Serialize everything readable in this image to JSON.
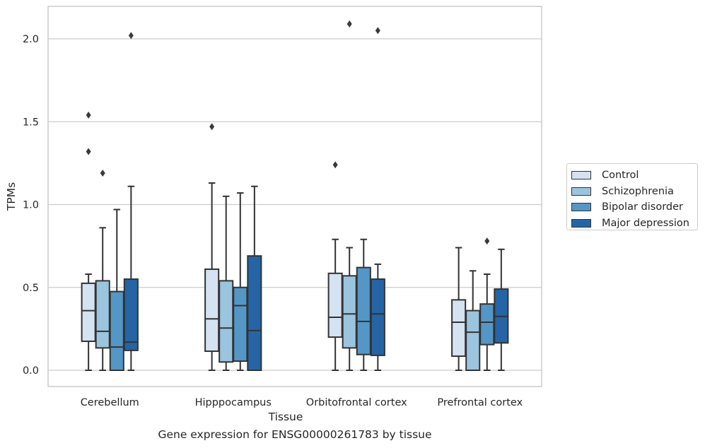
{
  "caption": "Gene expression for ENSG00000261783 by tissue",
  "chart_data": {
    "type": "box",
    "xlabel": "Tissue",
    "ylabel": "TPMs",
    "ylim": [
      -0.1,
      2.2
    ],
    "yticks": [
      "0.0",
      "0.5",
      "1.0",
      "1.5",
      "2.0"
    ],
    "ytick_values": [
      0.0,
      0.5,
      1.0,
      1.5,
      2.0
    ],
    "grid": "horizontal",
    "legend_position": "right, outside plot",
    "categories": [
      "Cerebellum",
      "Hipppocampus",
      "Orbitofrontal cortex",
      "Prefrontal cortex"
    ],
    "series": [
      {
        "name": "Control",
        "color": "#d4e2f1",
        "boxes": [
          {
            "whisker_low": 0.0,
            "q1": 0.175,
            "median": 0.36,
            "q3": 0.525,
            "whisker_high": 0.58,
            "outliers": [
              1.32,
              1.54
            ]
          },
          {
            "whisker_low": 0.0,
            "q1": 0.115,
            "median": 0.31,
            "q3": 0.61,
            "whisker_high": 1.13,
            "outliers": [
              1.47
            ]
          },
          {
            "whisker_low": 0.0,
            "q1": 0.2,
            "median": 0.32,
            "q3": 0.585,
            "whisker_high": 0.79,
            "outliers": [
              1.24
            ]
          },
          {
            "whisker_low": 0.0,
            "q1": 0.085,
            "median": 0.29,
            "q3": 0.425,
            "whisker_high": 0.74,
            "outliers": []
          }
        ]
      },
      {
        "name": "Schizophrenia",
        "color": "#9bc5de",
        "boxes": [
          {
            "whisker_low": 0.0,
            "q1": 0.135,
            "median": 0.235,
            "q3": 0.54,
            "whisker_high": 0.86,
            "outliers": [
              1.19
            ]
          },
          {
            "whisker_low": 0.0,
            "q1": 0.05,
            "median": 0.255,
            "q3": 0.54,
            "whisker_high": 1.05,
            "outliers": []
          },
          {
            "whisker_low": 0.0,
            "q1": 0.135,
            "median": 0.34,
            "q3": 0.57,
            "whisker_high": 0.74,
            "outliers": [
              2.09
            ]
          },
          {
            "whisker_low": 0.0,
            "q1": 0.0,
            "median": 0.23,
            "q3": 0.36,
            "whisker_high": 0.6,
            "outliers": []
          }
        ]
      },
      {
        "name": "Bipolar disorder",
        "color": "#5497c7",
        "boxes": [
          {
            "whisker_low": 0.0,
            "q1": 0.0,
            "median": 0.14,
            "q3": 0.475,
            "whisker_high": 0.97,
            "outliers": []
          },
          {
            "whisker_low": 0.0,
            "q1": 0.055,
            "median": 0.39,
            "q3": 0.5,
            "whisker_high": 1.07,
            "outliers": []
          },
          {
            "whisker_low": 0.0,
            "q1": 0.095,
            "median": 0.295,
            "q3": 0.62,
            "whisker_high": 0.79,
            "outliers": []
          },
          {
            "whisker_low": 0.0,
            "q1": 0.155,
            "median": 0.29,
            "q3": 0.4,
            "whisker_high": 0.58,
            "outliers": [
              0.78
            ]
          }
        ]
      },
      {
        "name": "Major depression",
        "color": "#2565a6",
        "boxes": [
          {
            "whisker_low": 0.0,
            "q1": 0.12,
            "median": 0.17,
            "q3": 0.55,
            "whisker_high": 1.11,
            "outliers": [
              2.02
            ]
          },
          {
            "whisker_low": 0.0,
            "q1": 0.0,
            "median": 0.24,
            "q3": 0.69,
            "whisker_high": 1.11,
            "outliers": []
          },
          {
            "whisker_low": 0.0,
            "q1": 0.09,
            "median": 0.34,
            "q3": 0.55,
            "whisker_high": 0.64,
            "outliers": [
              2.05
            ]
          },
          {
            "whisker_low": 0.0,
            "q1": 0.165,
            "median": 0.325,
            "q3": 0.49,
            "whisker_high": 0.73,
            "outliers": []
          }
        ]
      }
    ]
  }
}
